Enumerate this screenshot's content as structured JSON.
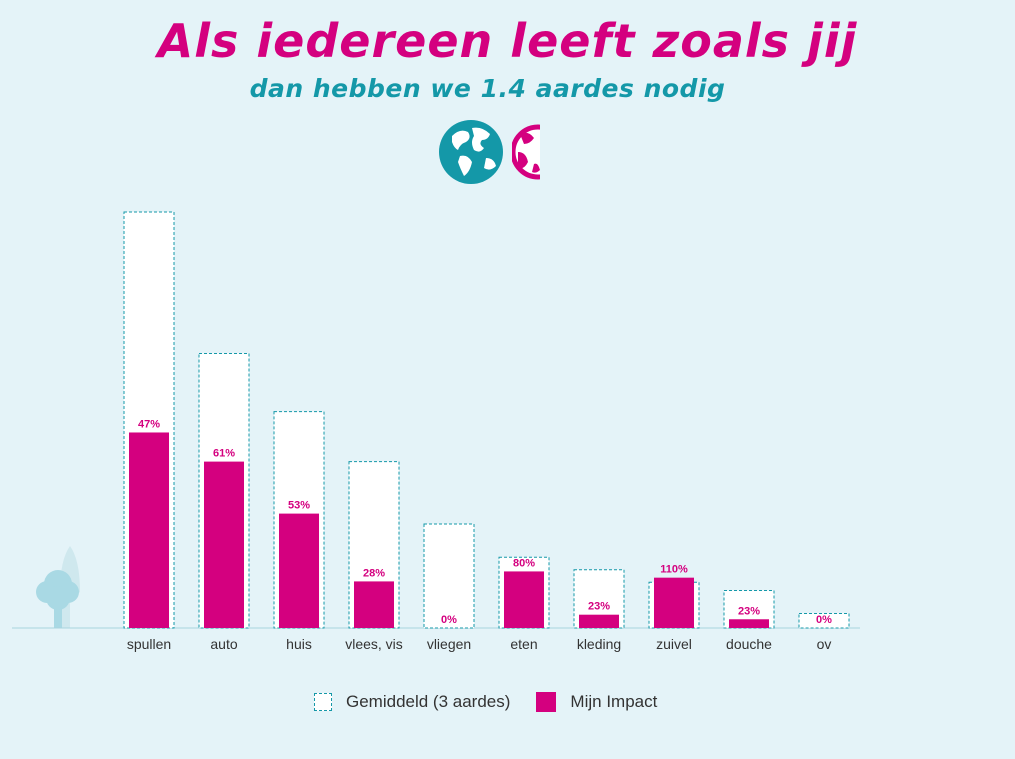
{
  "header": {
    "title": "Als iedereen leeft zoals jij",
    "subtitle": "dan hebben we 1.4 aardes nodig"
  },
  "colors": {
    "background": "#e4f3f8",
    "average_border": "#1498a8",
    "mine": "#d4007f",
    "baseline": "#a9d4de"
  },
  "chart_data": {
    "type": "bar",
    "categories": [
      "spullen",
      "auto",
      "huis",
      "vlees, vis",
      "vliegen",
      "eten",
      "kleding",
      "zuivel",
      "douche",
      "ov"
    ],
    "series": [
      {
        "name": "Gemiddeld (3 aardes)",
        "values": [
          100,
          66,
          52,
          40,
          25,
          17,
          14,
          11,
          9,
          3.5
        ]
      },
      {
        "name": "Mijn Impact",
        "values": [
          47,
          40,
          27.5,
          11.2,
          0,
          13.6,
          3.2,
          12.1,
          2.1,
          0
        ]
      }
    ],
    "labels": [
      "47%",
      "61%",
      "53%",
      "28%",
      "0%",
      "80%",
      "23%",
      "110%",
      "23%",
      "0%"
    ],
    "ylim": [
      0,
      100
    ],
    "grid": false,
    "legend_position": "bottom"
  },
  "legend": {
    "average": "Gemiddeld (3 aardes)",
    "mine": "Mijn Impact"
  }
}
